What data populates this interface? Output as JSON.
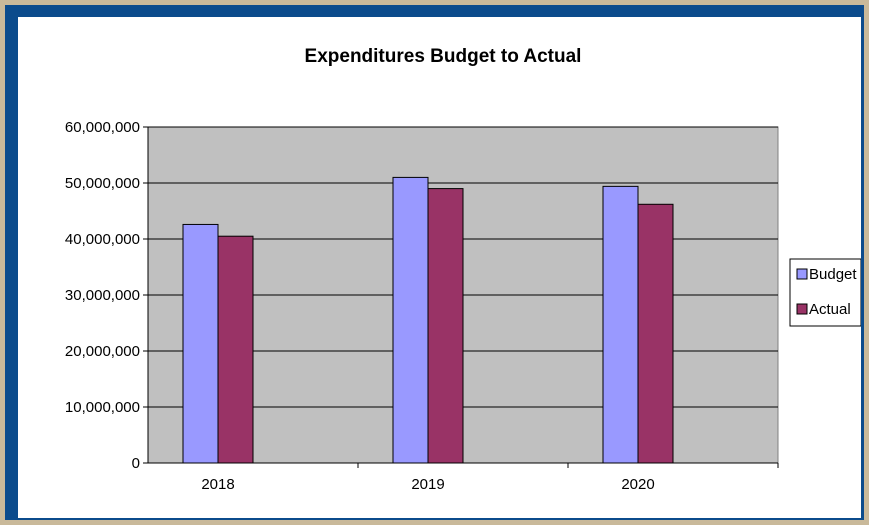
{
  "chart_data": {
    "type": "bar",
    "title": "Expenditures Budget to Actual",
    "categories": [
      "2018",
      "2019",
      "2020"
    ],
    "series": [
      {
        "name": "Budget",
        "values": [
          42600000,
          51000000,
          49400000
        ]
      },
      {
        "name": "Actual",
        "values": [
          40500000,
          49000000,
          46200000
        ]
      }
    ],
    "y_ticks": [
      "0",
      "10,000,000",
      "20,000,000",
      "30,000,000",
      "40,000,000",
      "50,000,000",
      "60,000,000"
    ],
    "ylim": [
      0,
      60000000
    ],
    "grid": true,
    "legend": "right"
  },
  "colors": {
    "budget": "#9999ff",
    "actual": "#993366",
    "plot_bg": "#c0c0c0",
    "frame": "#0b4b8c"
  }
}
